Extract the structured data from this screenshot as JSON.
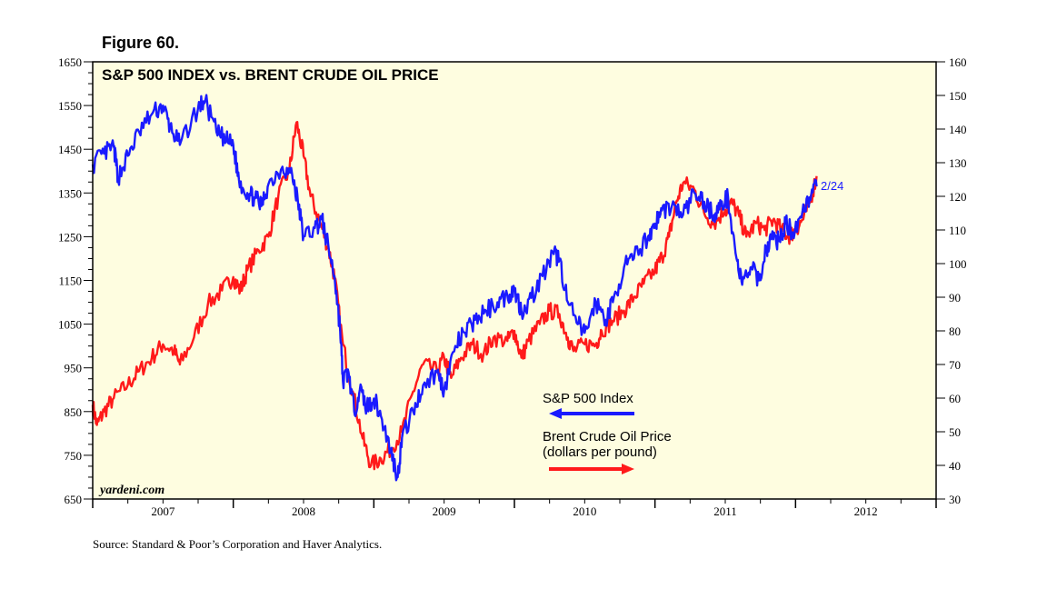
{
  "figure_label": "Figure 60.",
  "source_note": "Source: Standard & Poor’s Corporation and Haver Analytics.",
  "colors": {
    "background": "#fefde0",
    "sp500": "#1a1aff",
    "brent": "#ff1a1a"
  },
  "chart_data": {
    "type": "line",
    "title": "S&P 500 INDEX vs. BRENT CRUDE OIL PRICE",
    "watermark": "yardeni.com",
    "last_date_label": "2/24",
    "x_tick_labels": [
      "2007",
      "2008",
      "2009",
      "2010",
      "2011",
      "2012"
    ],
    "x_range": [
      2007.0,
      2013.0
    ],
    "left_axis": {
      "min": 650,
      "max": 1650,
      "ticks": [
        650,
        750,
        850,
        950,
        1050,
        1150,
        1250,
        1350,
        1450,
        1550,
        1650
      ]
    },
    "right_axis": {
      "min": 30,
      "max": 160,
      "ticks": [
        30,
        40,
        50,
        60,
        70,
        80,
        90,
        100,
        110,
        120,
        130,
        140,
        150,
        160
      ]
    },
    "legend": {
      "sp500_label": "S&P 500 Index",
      "brent_label_line1": "Brent Crude Oil Price",
      "brent_label_line2": "(dollars per pound)"
    },
    "series": [
      {
        "name": "S&P 500 Index",
        "axis": "left",
        "color": "#1a1aff",
        "points": [
          [
            2007.0,
            1415
          ],
          [
            2007.08,
            1440
          ],
          [
            2007.15,
            1455
          ],
          [
            2007.18,
            1385
          ],
          [
            2007.25,
            1435
          ],
          [
            2007.33,
            1490
          ],
          [
            2007.42,
            1530
          ],
          [
            2007.5,
            1550
          ],
          [
            2007.55,
            1500
          ],
          [
            2007.62,
            1460
          ],
          [
            2007.75,
            1545
          ],
          [
            2007.8,
            1560
          ],
          [
            2007.88,
            1490
          ],
          [
            2007.95,
            1470
          ],
          [
            2008.0,
            1460
          ],
          [
            2008.04,
            1380
          ],
          [
            2008.1,
            1350
          ],
          [
            2008.15,
            1340
          ],
          [
            2008.2,
            1320
          ],
          [
            2008.25,
            1370
          ],
          [
            2008.35,
            1410
          ],
          [
            2008.42,
            1390
          ],
          [
            2008.46,
            1330
          ],
          [
            2008.5,
            1250
          ],
          [
            2008.58,
            1270
          ],
          [
            2008.63,
            1290
          ],
          [
            2008.68,
            1220
          ],
          [
            2008.72,
            1160
          ],
          [
            2008.76,
            1040
          ],
          [
            2008.78,
            920
          ],
          [
            2008.82,
            940
          ],
          [
            2008.86,
            850
          ],
          [
            2008.9,
            900
          ],
          [
            2008.95,
            860
          ],
          [
            2009.0,
            880
          ],
          [
            2009.05,
            840
          ],
          [
            2009.12,
            760
          ],
          [
            2009.17,
            700
          ],
          [
            2009.2,
            790
          ],
          [
            2009.28,
            850
          ],
          [
            2009.35,
            910
          ],
          [
            2009.45,
            940
          ],
          [
            2009.5,
            900
          ],
          [
            2009.58,
            1000
          ],
          [
            2009.65,
            1030
          ],
          [
            2009.72,
            1060
          ],
          [
            2009.8,
            1080
          ],
          [
            2009.88,
            1100
          ],
          [
            2009.95,
            1115
          ],
          [
            2010.0,
            1130
          ],
          [
            2010.05,
            1080
          ],
          [
            2010.12,
            1110
          ],
          [
            2010.2,
            1160
          ],
          [
            2010.28,
            1210
          ],
          [
            2010.32,
            1200
          ],
          [
            2010.38,
            1100
          ],
          [
            2010.45,
            1050
          ],
          [
            2010.5,
            1030
          ],
          [
            2010.58,
            1100
          ],
          [
            2010.65,
            1060
          ],
          [
            2010.7,
            1100
          ],
          [
            2010.78,
            1180
          ],
          [
            2010.85,
            1200
          ],
          [
            2010.95,
            1250
          ],
          [
            2011.0,
            1280
          ],
          [
            2011.05,
            1310
          ],
          [
            2011.12,
            1320
          ],
          [
            2011.2,
            1300
          ],
          [
            2011.28,
            1350
          ],
          [
            2011.35,
            1330
          ],
          [
            2011.42,
            1300
          ],
          [
            2011.47,
            1320
          ],
          [
            2011.52,
            1340
          ],
          [
            2011.58,
            1200
          ],
          [
            2011.62,
            1140
          ],
          [
            2011.68,
            1180
          ],
          [
            2011.74,
            1150
          ],
          [
            2011.79,
            1220
          ],
          [
            2011.83,
            1250
          ],
          [
            2011.88,
            1240
          ],
          [
            2011.93,
            1280
          ],
          [
            2011.98,
            1260
          ],
          [
            2012.05,
            1310
          ],
          [
            2012.1,
            1340
          ],
          [
            2012.15,
            1365
          ]
        ]
      },
      {
        "name": "Brent Crude Oil Price",
        "axis": "right",
        "color": "#ff1a1a",
        "points": [
          [
            2007.0,
            58
          ],
          [
            2007.03,
            52
          ],
          [
            2007.08,
            56
          ],
          [
            2007.15,
            60
          ],
          [
            2007.25,
            64
          ],
          [
            2007.33,
            68
          ],
          [
            2007.42,
            72
          ],
          [
            2007.5,
            76
          ],
          [
            2007.58,
            74
          ],
          [
            2007.62,
            70
          ],
          [
            2007.72,
            78
          ],
          [
            2007.82,
            88
          ],
          [
            2007.92,
            92
          ],
          [
            2008.0,
            96
          ],
          [
            2008.05,
            92
          ],
          [
            2008.1,
            98
          ],
          [
            2008.18,
            104
          ],
          [
            2008.25,
            108
          ],
          [
            2008.32,
            120
          ],
          [
            2008.4,
            128
          ],
          [
            2008.45,
            142
          ],
          [
            2008.5,
            132
          ],
          [
            2008.55,
            120
          ],
          [
            2008.62,
            112
          ],
          [
            2008.68,
            104
          ],
          [
            2008.72,
            96
          ],
          [
            2008.78,
            76
          ],
          [
            2008.85,
            62
          ],
          [
            2008.92,
            48
          ],
          [
            2008.98,
            40
          ],
          [
            2009.05,
            42
          ],
          [
            2009.12,
            45
          ],
          [
            2009.2,
            50
          ],
          [
            2009.28,
            62
          ],
          [
            2009.35,
            70
          ],
          [
            2009.45,
            68
          ],
          [
            2009.5,
            72
          ],
          [
            2009.55,
            66
          ],
          [
            2009.62,
            72
          ],
          [
            2009.7,
            76
          ],
          [
            2009.78,
            73
          ],
          [
            2009.85,
            78
          ],
          [
            2009.95,
            77
          ],
          [
            2010.0,
            80
          ],
          [
            2010.05,
            72
          ],
          [
            2010.1,
            77
          ],
          [
            2010.18,
            82
          ],
          [
            2010.25,
            86
          ],
          [
            2010.32,
            85
          ],
          [
            2010.38,
            78
          ],
          [
            2010.42,
            74
          ],
          [
            2010.5,
            76
          ],
          [
            2010.58,
            76
          ],
          [
            2010.62,
            80
          ],
          [
            2010.7,
            83
          ],
          [
            2010.78,
            86
          ],
          [
            2010.85,
            90
          ],
          [
            2010.92,
            94
          ],
          [
            2011.0,
            98
          ],
          [
            2011.05,
            102
          ],
          [
            2011.1,
            108
          ],
          [
            2011.15,
            118
          ],
          [
            2011.2,
            124
          ],
          [
            2011.28,
            122
          ],
          [
            2011.35,
            115
          ],
          [
            2011.42,
            112
          ],
          [
            2011.5,
            116
          ],
          [
            2011.55,
            118
          ],
          [
            2011.6,
            114
          ],
          [
            2011.65,
            108
          ],
          [
            2011.72,
            112
          ],
          [
            2011.78,
            110
          ],
          [
            2011.84,
            113
          ],
          [
            2011.9,
            110
          ],
          [
            2011.95,
            108
          ],
          [
            2012.0,
            110
          ],
          [
            2012.05,
            113
          ],
          [
            2012.1,
            118
          ],
          [
            2012.15,
            126
          ]
        ]
      }
    ]
  }
}
